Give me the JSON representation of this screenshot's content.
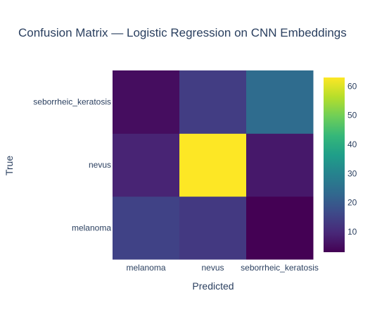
{
  "chart_data": {
    "type": "heatmap",
    "title": "Confusion Matrix — Logistic Regression on CNN Embeddings",
    "xlabel": "Predicted",
    "ylabel": "True",
    "x_categories": [
      "melanoma",
      "nevus",
      "seborrheic_keratosis"
    ],
    "y_categories": [
      "melanoma",
      "nevus",
      "seborrheic_keratosis"
    ],
    "z": [
      [
        15,
        13,
        3
      ],
      [
        9,
        63,
        7
      ],
      [
        5,
        14,
        24
      ]
    ],
    "zrange": [
      3,
      63
    ],
    "colorscale": "Viridis",
    "colorbar_ticks": [
      10,
      20,
      30,
      40,
      50,
      60
    ]
  }
}
